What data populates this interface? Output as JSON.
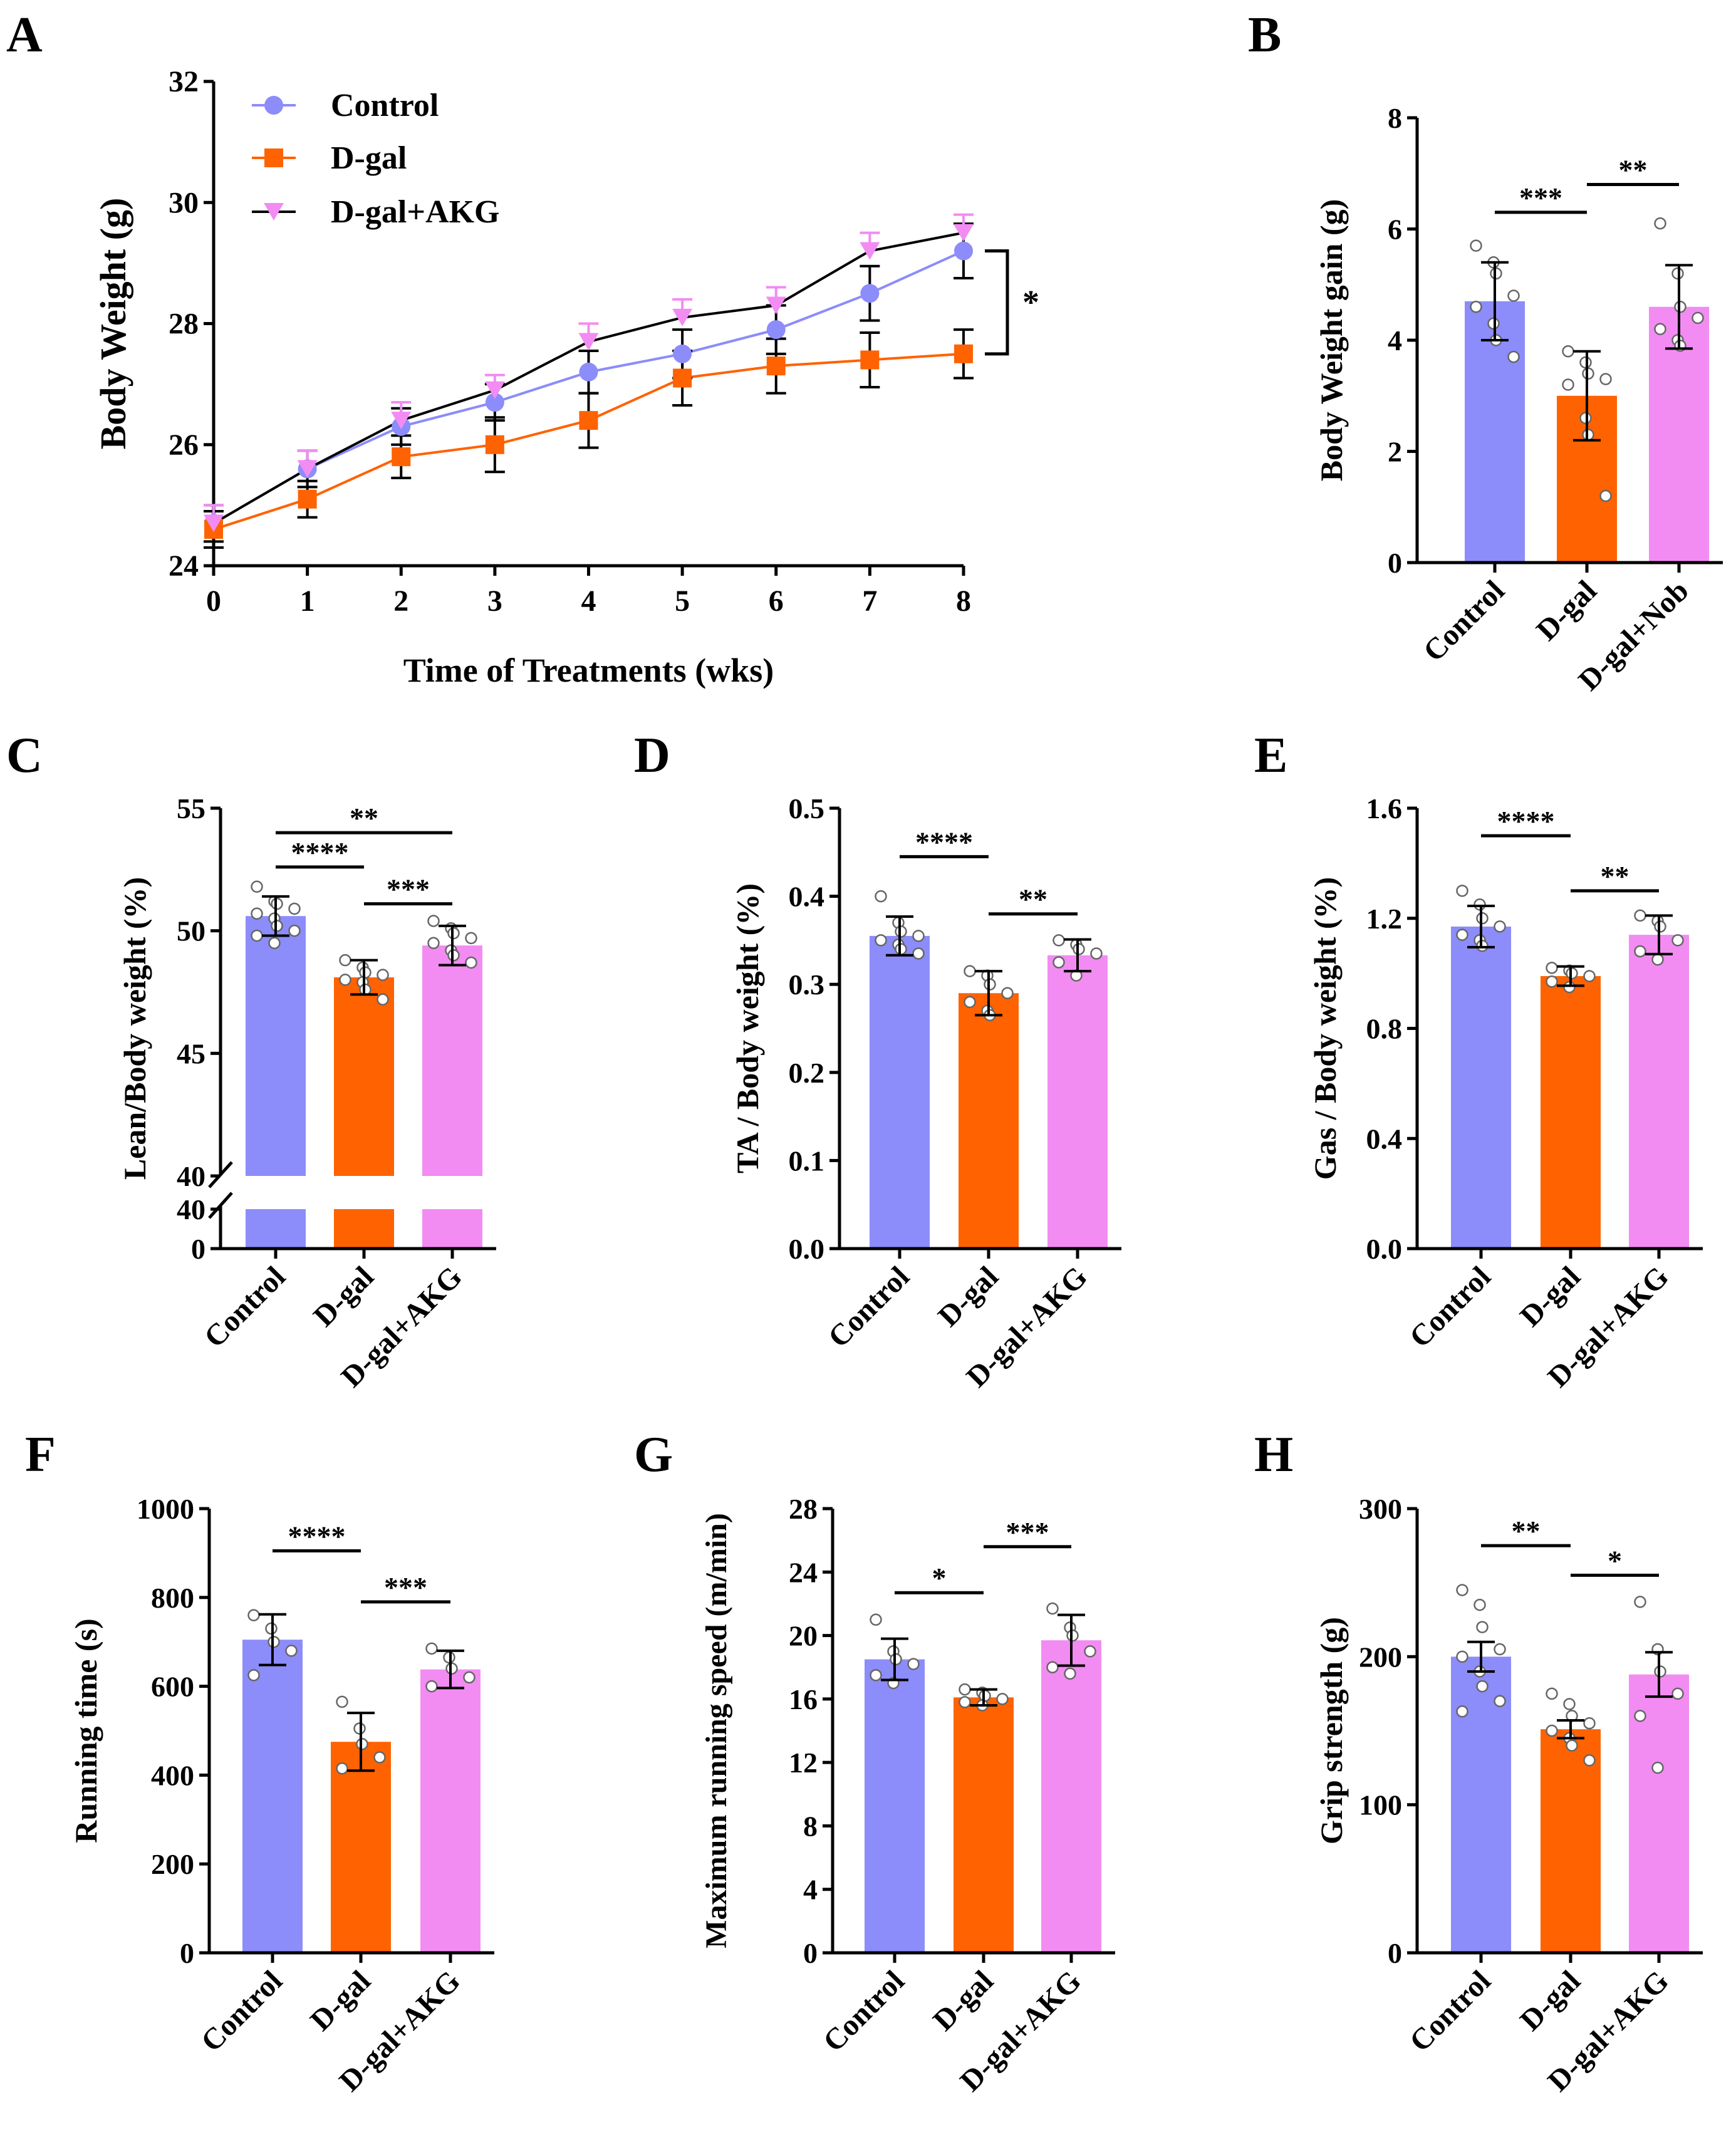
{
  "colors": {
    "control": "#8c8cfa",
    "dgal": "#ff6200",
    "akg": "#f28cf2",
    "axis": "#000000",
    "point": "#ffffff"
  },
  "chart_data": [
    {
      "panel": "A",
      "type": "line",
      "title": "",
      "xlabel": "Time of Treatments (wks)",
      "ylabel": "Body Weight (g)",
      "x": [
        0,
        1,
        2,
        3,
        4,
        5,
        6,
        7,
        8
      ],
      "xlim": [
        0,
        8
      ],
      "ylim": [
        24,
        32
      ],
      "yticks": [
        24,
        26,
        28,
        30,
        32
      ],
      "legend_position": "top-left",
      "significance": "*",
      "series": [
        {
          "name": "Control",
          "color_key": "control",
          "marker": "circle",
          "values": [
            24.7,
            25.6,
            26.3,
            26.7,
            27.2,
            27.5,
            27.9,
            28.5,
            29.2
          ],
          "errors": [
            0.3,
            0.3,
            0.3,
            0.3,
            0.35,
            0.4,
            0.4,
            0.45,
            0.45
          ]
        },
        {
          "name": "D-gal",
          "color_key": "dgal",
          "marker": "square",
          "values": [
            24.6,
            25.1,
            25.8,
            26.0,
            26.4,
            27.1,
            27.3,
            27.4,
            27.5
          ],
          "errors": [
            0.3,
            0.3,
            0.35,
            0.45,
            0.45,
            0.45,
            0.45,
            0.45,
            0.4
          ]
        },
        {
          "name": "D-gal+AKG",
          "color_key": "akg",
          "marker": "triangle-down",
          "values": [
            24.7,
            25.6,
            26.4,
            26.9,
            27.7,
            28.1,
            28.3,
            29.2,
            29.5
          ],
          "errors": [
            0.3,
            0.3,
            0.3,
            0.25,
            0.3,
            0.3,
            0.3,
            0.3,
            0.3
          ]
        }
      ]
    },
    {
      "panel": "B",
      "type": "bar",
      "ylabel": "Body Weight gain (g)",
      "categories": [
        "Control",
        "D-gal",
        "D-gal+Nob"
      ],
      "values": [
        4.7,
        3.0,
        4.6
      ],
      "errors": [
        0.7,
        0.8,
        0.75
      ],
      "ylim": [
        0,
        8
      ],
      "yticks": [
        0,
        2,
        4,
        6,
        8
      ],
      "points": [
        [
          5.7,
          5.4,
          5.2,
          4.8,
          4.6,
          4.3,
          4.0,
          3.7
        ],
        [
          3.8,
          3.6,
          3.4,
          3.3,
          3.2,
          2.6,
          2.3,
          1.2
        ],
        [
          6.1,
          5.2,
          4.6,
          4.4,
          4.2,
          4.0,
          3.9
        ]
      ],
      "comparisons": [
        {
          "from": 0,
          "to": 1,
          "label": "***",
          "y": 6.3
        },
        {
          "from": 1,
          "to": 2,
          "label": "**",
          "y": 6.8
        }
      ]
    },
    {
      "panel": "C",
      "type": "bar",
      "ylabel": "Lean/Body weight (%)",
      "categories": [
        "Control",
        "D-gal",
        "D-gal+AKG"
      ],
      "values": [
        50.6,
        48.1,
        49.4
      ],
      "errors": [
        0.8,
        0.7,
        0.8
      ],
      "ylim": [
        40,
        55
      ],
      "yticks": [
        40,
        45,
        50,
        55
      ],
      "broken_axis": {
        "lower_ticks": [
          0,
          40
        ]
      },
      "points": [
        [
          51.8,
          51.2,
          51.1,
          50.9,
          50.7,
          50.5,
          50.2,
          50.0,
          49.8,
          49.5
        ],
        [
          48.8,
          48.5,
          48.3,
          48.2,
          48.0,
          47.9,
          47.6,
          47.2
        ],
        [
          50.4,
          50.1,
          49.9,
          49.7,
          49.5,
          49.2,
          49.0,
          48.7
        ]
      ],
      "comparisons": [
        {
          "from": 0,
          "to": 1,
          "label": "****",
          "y": 52.6
        },
        {
          "from": 1,
          "to": 2,
          "label": "***",
          "y": 51.1
        },
        {
          "from": 0,
          "to": 2,
          "label": "**",
          "y": 54.0
        }
      ]
    },
    {
      "panel": "D",
      "type": "bar",
      "ylabel": "TA / Body weight (%)",
      "categories": [
        "Control",
        "D-gal",
        "D-gal+AKG"
      ],
      "values": [
        0.355,
        0.29,
        0.333
      ],
      "errors": [
        0.022,
        0.025,
        0.018
      ],
      "ylim": [
        0,
        0.5
      ],
      "yticks": [
        0.0,
        0.1,
        0.2,
        0.3,
        0.4,
        0.5
      ],
      "tick_labels": [
        "0.0",
        "0.1",
        "0.2",
        "0.3",
        "0.4",
        "0.5"
      ],
      "points": [
        [
          0.4,
          0.37,
          0.36,
          0.355,
          0.35,
          0.345,
          0.34,
          0.335
        ],
        [
          0.315,
          0.31,
          0.3,
          0.29,
          0.28,
          0.27,
          0.265
        ],
        [
          0.35,
          0.345,
          0.34,
          0.335,
          0.325,
          0.31
        ]
      ],
      "comparisons": [
        {
          "from": 0,
          "to": 1,
          "label": "****",
          "y": 0.445
        },
        {
          "from": 1,
          "to": 2,
          "label": "**",
          "y": 0.38
        }
      ]
    },
    {
      "panel": "E",
      "type": "bar",
      "ylabel": "Gas / Body weight (%)",
      "categories": [
        "Control",
        "D-gal",
        "D-gal+AKG"
      ],
      "values": [
        1.17,
        0.99,
        1.14
      ],
      "errors": [
        0.075,
        0.035,
        0.07
      ],
      "ylim": [
        0,
        1.6
      ],
      "yticks": [
        0.0,
        0.4,
        0.8,
        1.2,
        1.6
      ],
      "tick_labels": [
        "0.0",
        "0.4",
        "0.8",
        "1.2",
        "1.6"
      ],
      "points": [
        [
          1.3,
          1.25,
          1.2,
          1.17,
          1.14,
          1.12,
          1.1
        ],
        [
          1.02,
          1.01,
          1.0,
          0.99,
          0.97,
          0.95
        ],
        [
          1.21,
          1.19,
          1.17,
          1.12,
          1.08,
          1.05
        ]
      ],
      "comparisons": [
        {
          "from": 0,
          "to": 1,
          "label": "****",
          "y": 1.5
        },
        {
          "from": 1,
          "to": 2,
          "label": "**",
          "y": 1.3
        }
      ]
    },
    {
      "panel": "F",
      "type": "bar",
      "ylabel": "Running time (s)",
      "categories": [
        "Control",
        "D-gal",
        "D-gal+AKG"
      ],
      "values": [
        705,
        475,
        638
      ],
      "errors": [
        57,
        65,
        42
      ],
      "ylim": [
        0,
        1000
      ],
      "yticks": [
        0,
        200,
        400,
        600,
        800,
        1000
      ],
      "points": [
        [
          760,
          730,
          700,
          680,
          625
        ],
        [
          565,
          505,
          470,
          440,
          415
        ],
        [
          685,
          665,
          640,
          620,
          600
        ]
      ],
      "comparisons": [
        {
          "from": 0,
          "to": 1,
          "label": "****",
          "y": 905
        },
        {
          "from": 1,
          "to": 2,
          "label": "***",
          "y": 790
        }
      ]
    },
    {
      "panel": "G",
      "type": "bar",
      "ylabel": "Maximum running speed (m/min)",
      "categories": [
        "Control",
        "D-gal",
        "D-gal+AKG"
      ],
      "values": [
        18.5,
        16.1,
        19.7
      ],
      "errors": [
        1.3,
        0.5,
        1.6
      ],
      "ylim": [
        0,
        28
      ],
      "yticks": [
        0,
        4,
        8,
        12,
        16,
        20,
        24,
        28
      ],
      "points": [
        [
          21.0,
          19.0,
          18.5,
          18.2,
          17.5,
          17.0
        ],
        [
          16.6,
          16.4,
          16.2,
          16.0,
          15.8,
          15.6
        ],
        [
          21.7,
          20.5,
          20.0,
          19.0,
          18.0,
          17.6
        ]
      ],
      "comparisons": [
        {
          "from": 0,
          "to": 1,
          "label": "*",
          "y": 22.7
        },
        {
          "from": 1,
          "to": 2,
          "label": "***",
          "y": 25.6
        }
      ]
    },
    {
      "panel": "H",
      "type": "bar",
      "ylabel": "Grip strength (g)",
      "categories": [
        "Control",
        "D-gal",
        "D-gal+AKG"
      ],
      "values": [
        200,
        151,
        188
      ],
      "errors": [
        10,
        6,
        15
      ],
      "ylim": [
        0,
        300
      ],
      "yticks": [
        0,
        100,
        200,
        300
      ],
      "points": [
        [
          245,
          235,
          220,
          205,
          200,
          190,
          180,
          170,
          163
        ],
        [
          175,
          168,
          160,
          155,
          150,
          145,
          140,
          130
        ],
        [
          237,
          205,
          190,
          175,
          160,
          125
        ]
      ],
      "comparisons": [
        {
          "from": 0,
          "to": 1,
          "label": "**",
          "y": 275
        },
        {
          "from": 1,
          "to": 2,
          "label": "*",
          "y": 255
        }
      ]
    }
  ]
}
